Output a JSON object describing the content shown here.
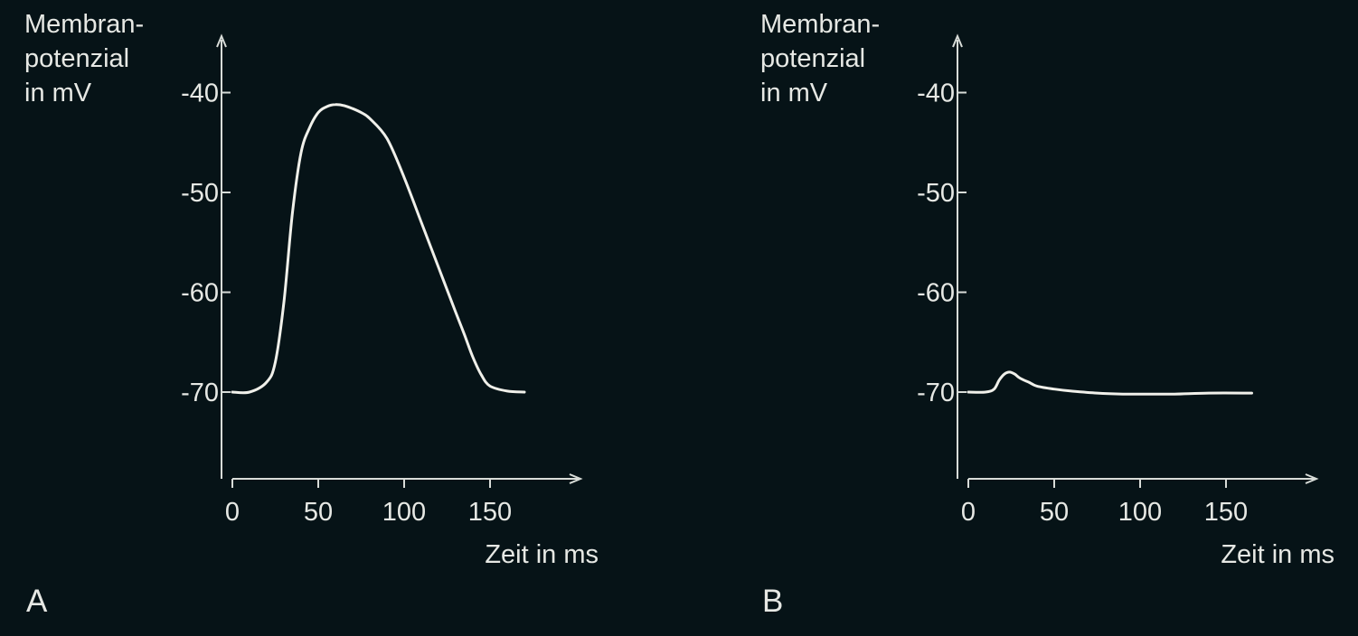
{
  "colors": {
    "background": "#061317",
    "axis": "#d8dcd8",
    "curve": "#f0f0ea",
    "text": "#e6e8e4"
  },
  "chart_data": [
    {
      "panel_label": "A",
      "type": "line",
      "ylabel": [
        "Membran-",
        "potenzial",
        "in mV"
      ],
      "xlabel": "Zeit in ms",
      "xticks": [
        0,
        50,
        100,
        150
      ],
      "yticks": [
        -40,
        -50,
        -60,
        -70
      ],
      "xlim": [
        -6,
        205
      ],
      "ylim": [
        -79,
        -35
      ],
      "grid": false,
      "series": [
        {
          "x": [
            0,
            10,
            20,
            25,
            30,
            35,
            40,
            45,
            50,
            55,
            60,
            65,
            70,
            75,
            80,
            90,
            100,
            110,
            120,
            130,
            135,
            140,
            145,
            150,
            160,
            170
          ],
          "y": [
            -70,
            -70,
            -69,
            -67,
            -61,
            -52,
            -46,
            -43.5,
            -42,
            -41.4,
            -41.2,
            -41.3,
            -41.6,
            -42,
            -42.6,
            -44.6,
            -48.5,
            -53,
            -57.5,
            -62,
            -64.2,
            -66.5,
            -68.3,
            -69.4,
            -69.9,
            -70
          ]
        }
      ]
    },
    {
      "panel_label": "B",
      "type": "line",
      "ylabel": [
        "Membran-",
        "potenzial",
        "in mV"
      ],
      "xlabel": "Zeit in ms",
      "xticks": [
        0,
        50,
        100,
        150
      ],
      "yticks": [
        -40,
        -50,
        -60,
        -70
      ],
      "xlim": [
        -6,
        205
      ],
      "ylim": [
        -79,
        -35
      ],
      "grid": false,
      "series": [
        {
          "x": [
            0,
            10,
            15,
            18,
            21,
            24,
            27,
            30,
            35,
            40,
            50,
            60,
            75,
            90,
            105,
            120,
            140,
            165
          ],
          "y": [
            -70,
            -70,
            -69.7,
            -68.8,
            -68.2,
            -68.0,
            -68.2,
            -68.6,
            -69.0,
            -69.4,
            -69.7,
            -69.9,
            -70.1,
            -70.2,
            -70.2,
            -70.2,
            -70.1,
            -70.1
          ]
        }
      ]
    }
  ]
}
